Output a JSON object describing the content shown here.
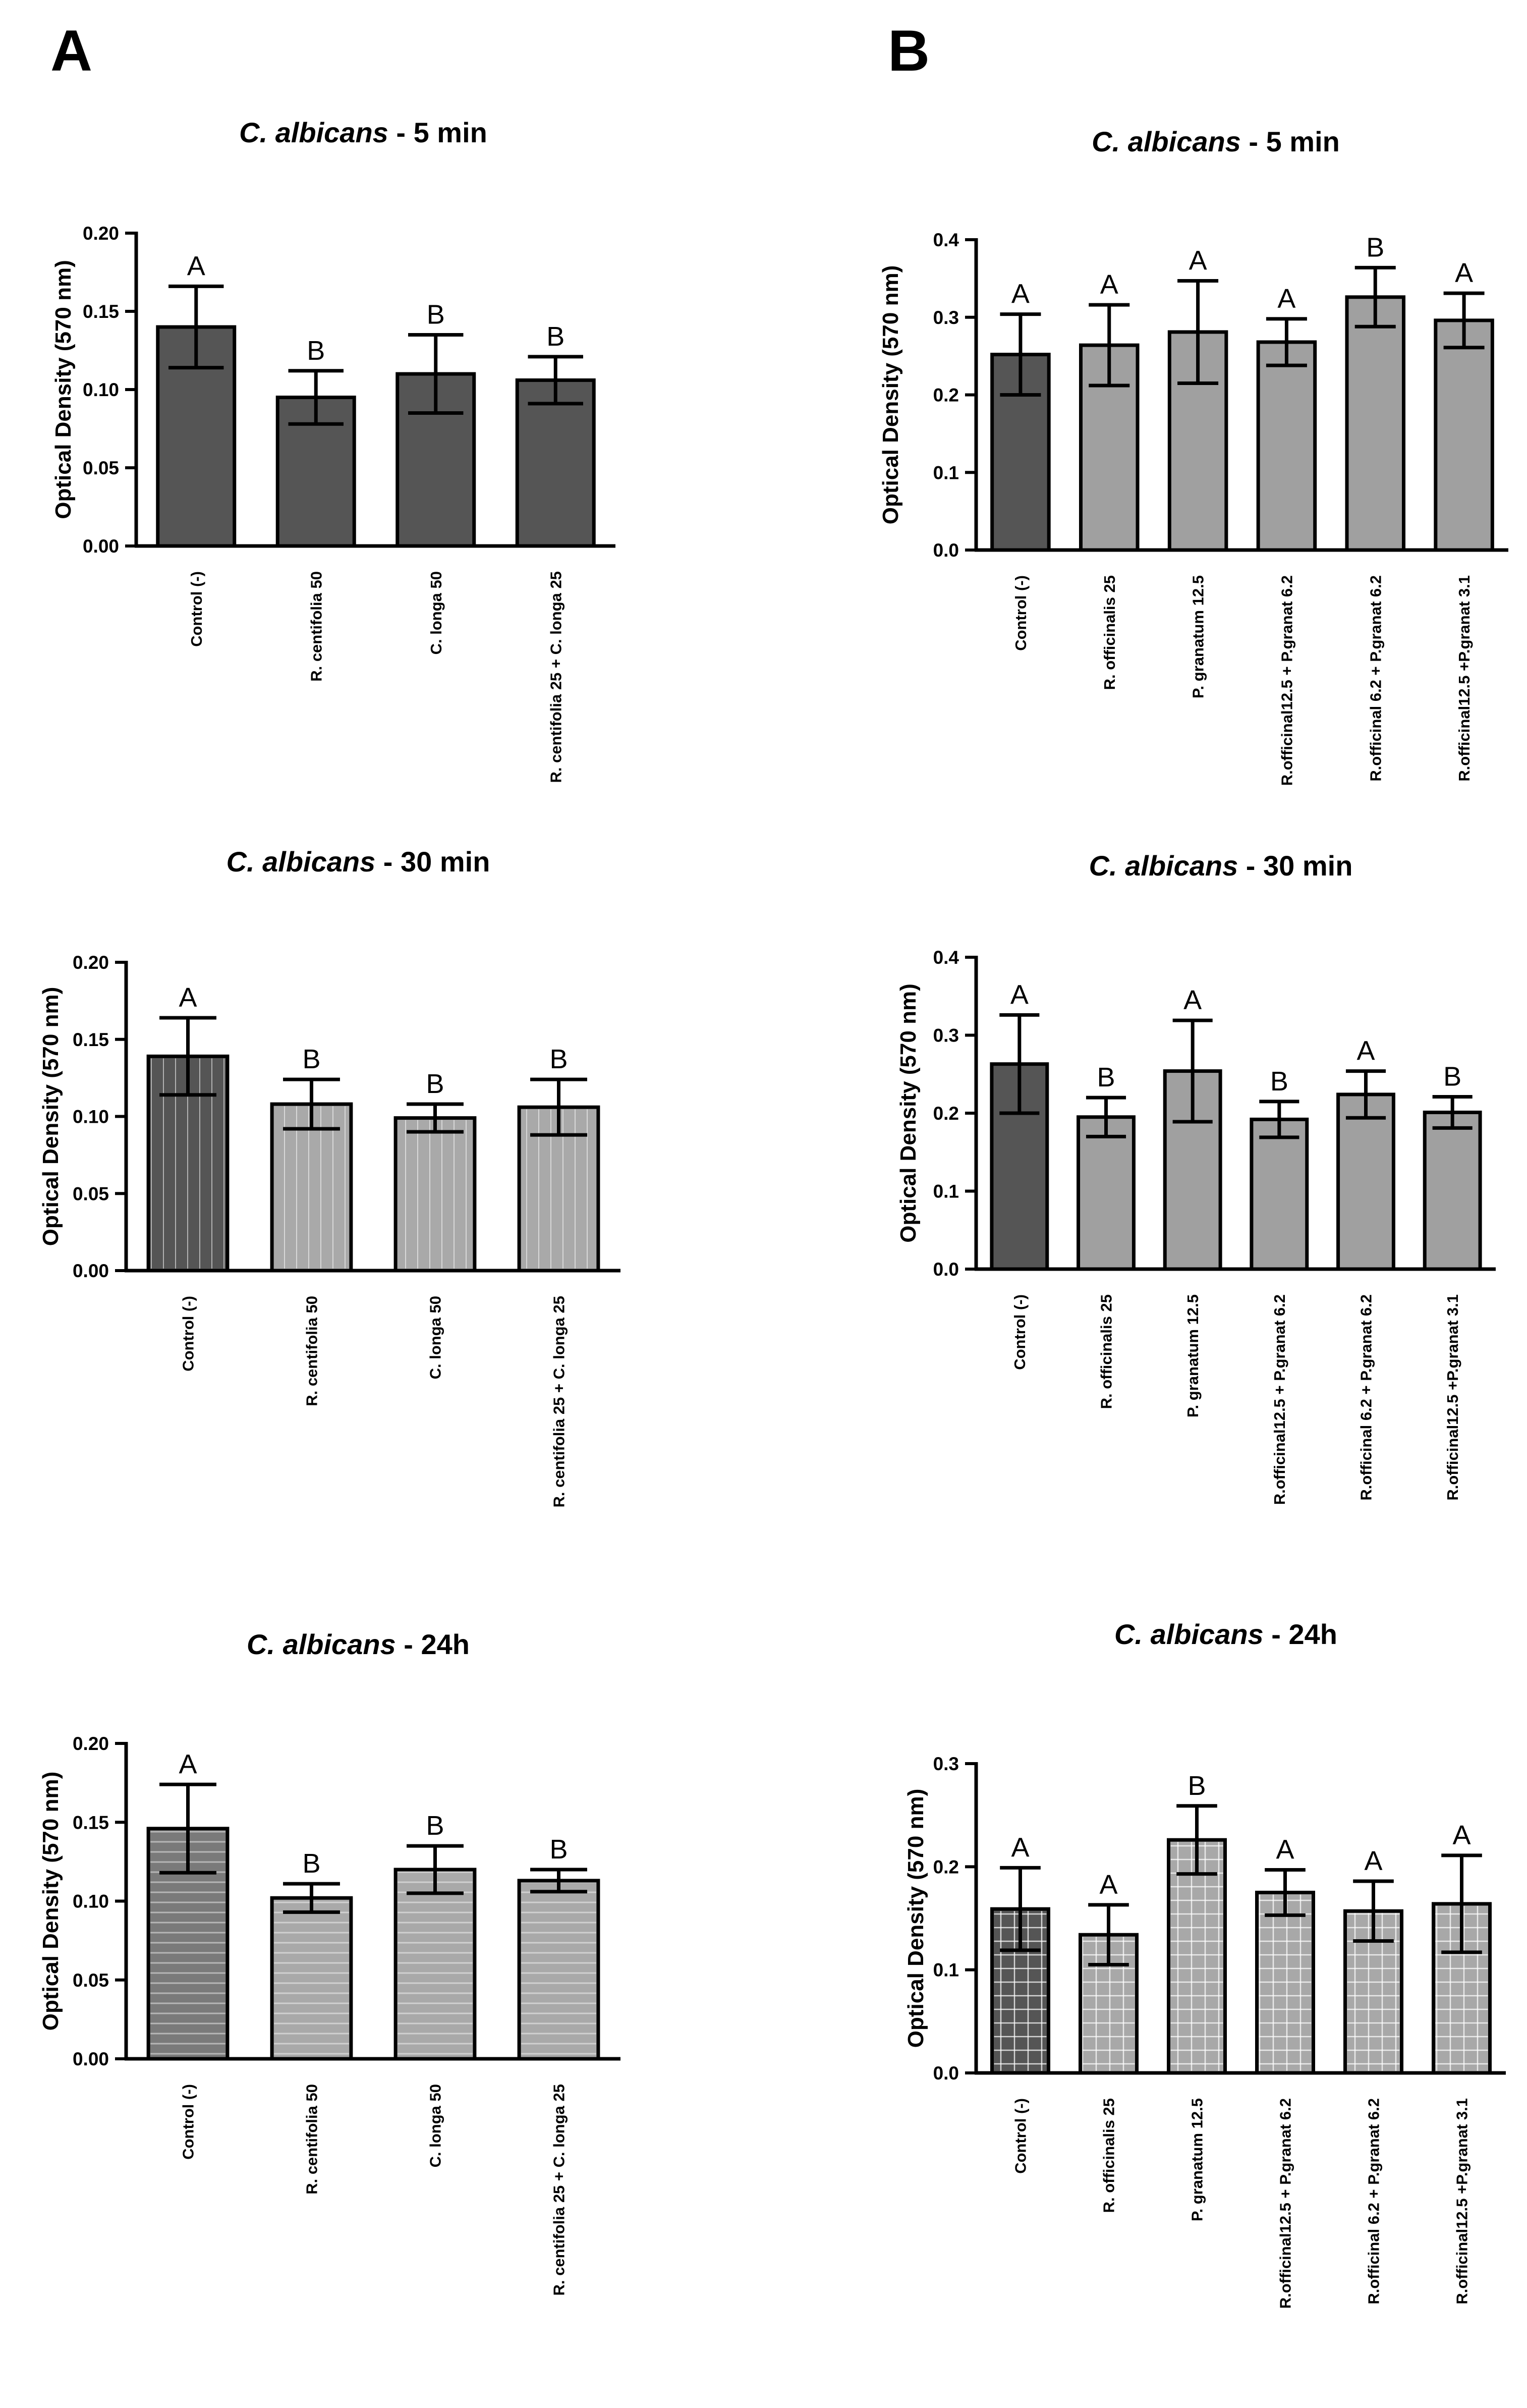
{
  "panels": [
    "A",
    "B"
  ],
  "chart_data": [
    {
      "panel": "A",
      "type": "bar",
      "title_italic": "C. albicans",
      "title_rest": " - 5 min",
      "ylabel": "Optical Density (570 nm)",
      "ylim": [
        0,
        0.2
      ],
      "yticks": [
        "0.00",
        "0.05",
        "0.10",
        "0.15",
        "0.20"
      ],
      "categories": [
        "Control (-)",
        "R. centifolia 50",
        "C. longa 50",
        "R. centifolia 25 + C. longa 25"
      ],
      "values": [
        0.14,
        0.095,
        0.11,
        0.106
      ],
      "errors": [
        0.026,
        0.017,
        0.025,
        0.015
      ],
      "letters": [
        "A",
        "B",
        "B",
        "B"
      ],
      "fills": [
        "#555555",
        "#555555",
        "#555555",
        "#555555"
      ],
      "patterns": [
        "solid",
        "solid",
        "solid",
        "solid"
      ]
    },
    {
      "panel": "B",
      "type": "bar",
      "title_italic": "C. albicans",
      "title_rest": " - 5 min",
      "ylabel": "Optical Density (570 nm)",
      "ylim": [
        0,
        0.4
      ],
      "yticks": [
        "0.0",
        "0.1",
        "0.2",
        "0.3",
        "0.4"
      ],
      "categories": [
        "Control (-)",
        "R. officinalis 25",
        "P. granatum 12.5",
        "R.officinal12.5 + P.granat 6.2",
        "R.officinal 6.2 + P.granat 6.2",
        "R.officinal12.5 +P.granat 3.1"
      ],
      "values": [
        0.252,
        0.264,
        0.281,
        0.268,
        0.326,
        0.296
      ],
      "errors": [
        0.052,
        0.052,
        0.066,
        0.03,
        0.038,
        0.035
      ],
      "letters": [
        "A",
        "A",
        "A",
        "A",
        "B",
        "A"
      ],
      "fills": [
        "#555555",
        "#a0a0a0",
        "#a0a0a0",
        "#a0a0a0",
        "#a0a0a0",
        "#a0a0a0"
      ],
      "patterns": [
        "solid",
        "solid",
        "solid",
        "solid",
        "solid",
        "solid"
      ]
    },
    {
      "panel": "A",
      "type": "bar",
      "title_italic": "C. albicans",
      "title_rest": " - 30 min",
      "ylabel": "Optical Density (570 nm)",
      "ylim": [
        0,
        0.2
      ],
      "yticks": [
        "0.00",
        "0.05",
        "0.10",
        "0.15",
        "0.20"
      ],
      "categories": [
        "Control (-)",
        "R. centifolia 50",
        "C. longa 50",
        "R. centifolia 25 + C. longa 25"
      ],
      "values": [
        0.139,
        0.108,
        0.099,
        0.106
      ],
      "errors": [
        0.025,
        0.016,
        0.009,
        0.018
      ],
      "letters": [
        "A",
        "B",
        "B",
        "B"
      ],
      "fills": [
        "#555555",
        "#a9a9a9",
        "#a9a9a9",
        "#a9a9a9"
      ],
      "patterns": [
        "vlines",
        "vlines",
        "vlines",
        "vlines"
      ]
    },
    {
      "panel": "B",
      "type": "bar",
      "title_italic": "C. albicans",
      "title_rest": " - 30 min",
      "ylabel": "Optical Density (570 nm)",
      "ylim": [
        0,
        0.4
      ],
      "yticks": [
        "0.0",
        "0.1",
        "0.2",
        "0.3",
        "0.4"
      ],
      "categories": [
        "Control (-)",
        "R. officinalis 25",
        "P. granatum 12.5",
        "R.officinal12.5 + P.granat 6.2",
        "R.officinal 6.2 + P.granat 6.2",
        "R.officinal12.5 +P.granat 3.1"
      ],
      "values": [
        0.263,
        0.195,
        0.254,
        0.192,
        0.224,
        0.201
      ],
      "errors": [
        0.063,
        0.025,
        0.065,
        0.023,
        0.03,
        0.02
      ],
      "letters": [
        "A",
        "B",
        "A",
        "B",
        "A",
        "B"
      ],
      "fills": [
        "#555555",
        "#a0a0a0",
        "#a0a0a0",
        "#a0a0a0",
        "#a0a0a0",
        "#a0a0a0"
      ],
      "patterns": [
        "solid",
        "solid",
        "solid",
        "solid",
        "solid",
        "solid"
      ]
    },
    {
      "panel": "A",
      "type": "bar",
      "title_italic": "C. albicans",
      "title_rest": " - 24h",
      "ylabel": "Optical Density (570 nm)",
      "ylim": [
        0,
        0.2
      ],
      "yticks": [
        "0.00",
        "0.05",
        "0.10",
        "0.15",
        "0.20"
      ],
      "categories": [
        "Control (-)",
        "R. centifolia 50",
        "C. longa 50",
        "R. centifolia 25 + C. longa 25"
      ],
      "values": [
        0.146,
        0.102,
        0.12,
        0.113
      ],
      "errors": [
        0.028,
        0.009,
        0.015,
        0.007
      ],
      "letters": [
        "A",
        "B",
        "B",
        "B"
      ],
      "fills": [
        "#7a7a7a",
        "#a9a9a9",
        "#a9a9a9",
        "#a9a9a9"
      ],
      "patterns": [
        "hlines",
        "hlines",
        "hlines",
        "hlines"
      ]
    },
    {
      "panel": "B",
      "type": "bar",
      "title_italic": "C. albicans",
      "title_rest": " - 24h",
      "ylabel": "Optical Density (570 nm)",
      "ylim": [
        0,
        0.3
      ],
      "yticks": [
        "0.0",
        "0.1",
        "0.2",
        "0.3"
      ],
      "categories": [
        "Control (-)",
        "R. officinalis 25",
        "P. granatum 12.5",
        "R.officinal12.5 + P.granat 6.2",
        "R.officinal 6.2 + P.granat 6.2",
        "R.officinal12.5 +P.granat 3.1"
      ],
      "values": [
        0.159,
        0.134,
        0.226,
        0.175,
        0.157,
        0.164
      ],
      "errors": [
        0.04,
        0.029,
        0.033,
        0.022,
        0.029,
        0.047
      ],
      "letters": [
        "A",
        "A",
        "B",
        "A",
        "A",
        "A"
      ],
      "fills": [
        "#555555",
        "#a8a8a8",
        "#a8a8a8",
        "#a8a8a8",
        "#a8a8a8",
        "#a8a8a8"
      ],
      "patterns": [
        "grid",
        "grid",
        "grid",
        "grid",
        "grid",
        "grid"
      ]
    }
  ]
}
